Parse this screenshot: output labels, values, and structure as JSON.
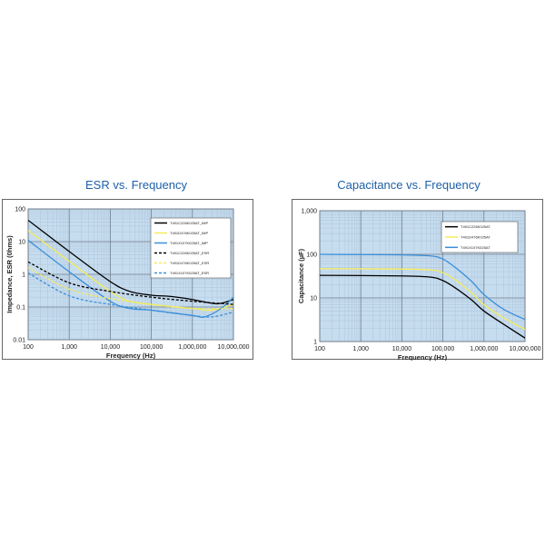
{
  "chart_data": [
    {
      "type": "line",
      "title": "ESR vs. Frequency",
      "xlabel": "Frequency (Hz)",
      "ylabel": "Impedance, ESR (0hms)",
      "xscale": "log",
      "yscale": "log",
      "xlim": [
        100,
        10000000
      ],
      "ylim": [
        0.01,
        100
      ],
      "x_tick_labels": [
        "100",
        "1,000",
        "10,000",
        "100,000",
        "1,000,000",
        "10,000,000"
      ],
      "y_tick_labels": [
        "0.01",
        "0.1",
        "1",
        "10",
        "100"
      ],
      "grid": true,
      "legend_position": "top-right",
      "series": [
        {
          "name": "T491C226K025AT_IMP",
          "color": "#000000",
          "style": "solid",
          "x": [
            100,
            1000,
            10000,
            30000,
            100000,
            300000,
            1000000,
            3000000,
            5000000,
            10000000
          ],
          "y": [
            45,
            5,
            0.6,
            0.3,
            0.23,
            0.21,
            0.17,
            0.13,
            0.13,
            0.17
          ]
        },
        {
          "name": "T491D476K025AT_IMP",
          "color": "#f5ec5a",
          "style": "solid",
          "x": [
            100,
            1000,
            10000,
            30000,
            100000,
            1000000,
            3000000,
            10000000
          ],
          "y": [
            22,
            2.5,
            0.3,
            0.15,
            0.12,
            0.09,
            0.08,
            0.12
          ]
        },
        {
          "name": "T491X107K025AT_IMP",
          "color": "#3a8fd9",
          "style": "solid",
          "x": [
            100,
            1000,
            10000,
            30000,
            100000,
            1000000,
            2000000,
            5000000,
            10000000
          ],
          "y": [
            11,
            1.2,
            0.15,
            0.09,
            0.08,
            0.055,
            0.05,
            0.09,
            0.2
          ]
        },
        {
          "name": "T491C226K025AT_ESR",
          "color": "#000000",
          "style": "dashed",
          "x": [
            100,
            1000,
            10000,
            100000,
            1000000,
            10000000
          ],
          "y": [
            2.4,
            0.55,
            0.3,
            0.2,
            0.15,
            0.12
          ]
        },
        {
          "name": "T491D476K025AT_ESR",
          "color": "#f5ec5a",
          "style": "dashed",
          "x": [
            100,
            1000,
            10000,
            100000,
            1000000,
            10000000
          ],
          "y": [
            1.6,
            0.35,
            0.18,
            0.12,
            0.09,
            0.09
          ]
        },
        {
          "name": "T491X107K025AT_ESR",
          "color": "#3a8fd9",
          "style": "dashed",
          "x": [
            100,
            1000,
            10000,
            100000,
            1000000,
            3000000,
            10000000
          ],
          "y": [
            1.1,
            0.22,
            0.12,
            0.08,
            0.055,
            0.05,
            0.07
          ]
        }
      ]
    },
    {
      "type": "line",
      "title": "Capacitance vs. Frequency",
      "xlabel": "Frequency (Hz)",
      "ylabel": "Capacitance (µF)",
      "xscale": "log",
      "yscale": "log",
      "xlim": [
        100,
        10000000
      ],
      "ylim": [
        1,
        1000
      ],
      "x_tick_labels": [
        "100",
        "1,000",
        "10,000",
        "100,000",
        "1,000,000",
        "10,000,000"
      ],
      "y_tick_labels": [
        "1",
        "10",
        "100",
        "1,000"
      ],
      "grid": true,
      "legend_position": "top-right",
      "series": [
        {
          "name": "T491C226K025AT",
          "color": "#000000",
          "style": "solid",
          "x": [
            100,
            10000,
            50000,
            100000,
            200000,
            500000,
            1000000,
            3000000,
            10000000
          ],
          "y": [
            33,
            32,
            30,
            25,
            17,
            9,
            5,
            2.5,
            1.2
          ]
        },
        {
          "name": "T491D476K025AT",
          "color": "#f5ec5a",
          "style": "solid",
          "x": [
            100,
            10000,
            50000,
            100000,
            200000,
            500000,
            1000000,
            3000000,
            10000000
          ],
          "y": [
            47,
            46,
            44,
            38,
            26,
            13,
            7,
            3.5,
            1.9
          ]
        },
        {
          "name": "T491X107K025AT",
          "color": "#3a8fd9",
          "style": "solid",
          "x": [
            100,
            10000,
            50000,
            100000,
            200000,
            500000,
            1000000,
            3000000,
            10000000
          ],
          "y": [
            100,
            97,
            92,
            78,
            50,
            24,
            12,
            5.5,
            3.2
          ]
        }
      ]
    }
  ]
}
